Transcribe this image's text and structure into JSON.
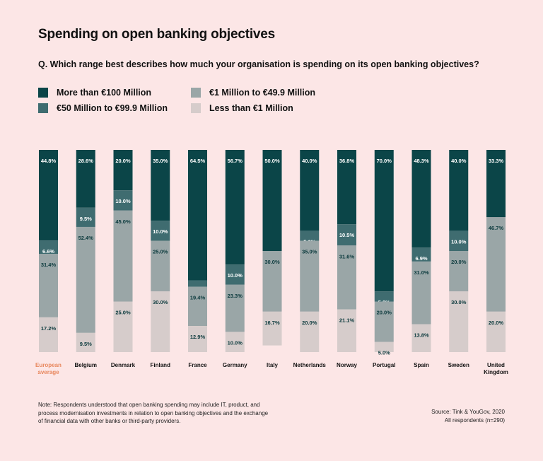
{
  "title": "Spending on open banking objectives",
  "question": "Q. Which range best describes how much your organisation is spending on its open banking objectives?",
  "colors": {
    "background": "#fce6e6",
    "more_than_100m": "#0b4548",
    "50m_to_99_9m": "#3f6c70",
    "1m_to_49_9m": "#9aa6a7",
    "less_than_1m": "#d6cccb",
    "highlight_label": "#e8875d"
  },
  "legend": [
    {
      "label": "More than €100 Million",
      "color_key": "more_than_100m"
    },
    {
      "label": "€50 Million to €99.9 Million",
      "color_key": "50m_to_99_9m"
    },
    {
      "label": "€1 Million to €49.9 Million",
      "color_key": "1m_to_49_9m"
    },
    {
      "label": "Less than €1 Million",
      "color_key": "less_than_1m"
    }
  ],
  "chart_data": {
    "type": "bar",
    "stacked": true,
    "value_format": "percent",
    "categories": [
      "European average",
      "Belgium",
      "Denmark",
      "Finland",
      "France",
      "Germany",
      "Italy",
      "Netherlands",
      "Norway",
      "Portugal",
      "Spain",
      "Sweden",
      "United Kingdom"
    ],
    "highlighted_category": "European average",
    "series": [
      {
        "name": "More than €100 Million",
        "color": "#0b4548",
        "label_color": "#ffffff",
        "values": [
          44.8,
          28.6,
          20.0,
          35.0,
          64.5,
          56.7,
          50.0,
          40.0,
          36.8,
          70.0,
          48.3,
          40.0,
          33.3
        ]
      },
      {
        "name": "€50 Million to €99.9 Million",
        "color": "#3f6c70",
        "label_color": "#ffffff",
        "values": [
          6.6,
          9.5,
          10.0,
          10.0,
          3.2,
          10.0,
          0,
          5.0,
          10.5,
          5.0,
          6.9,
          10.0,
          0
        ]
      },
      {
        "name": "€1 Million to €49.9 Million",
        "color": "#9aa6a7",
        "label_color": "#0b3a3d",
        "values": [
          31.4,
          52.4,
          45.0,
          25.0,
          19.4,
          23.3,
          30.0,
          35.0,
          31.6,
          20.0,
          31.0,
          20.0,
          46.7
        ]
      },
      {
        "name": "Less than €1 Million",
        "color": "#d6cccb",
        "label_color": "#0b3a3d",
        "values": [
          17.2,
          9.5,
          25.0,
          30.0,
          12.9,
          10.0,
          16.7,
          20.0,
          21.1,
          5.0,
          13.8,
          30.0,
          20.0
        ]
      }
    ],
    "ylim": [
      0,
      100
    ]
  },
  "note": "Note: Respondents understood that open banking spending may include IT, product, and process modernisation investments in relation to open banking objectives and the exchange of financial data with other banks or third-party providers.",
  "source": "Source: Tink & YouGov, 2020",
  "respondents": "All respondents (n=290)"
}
